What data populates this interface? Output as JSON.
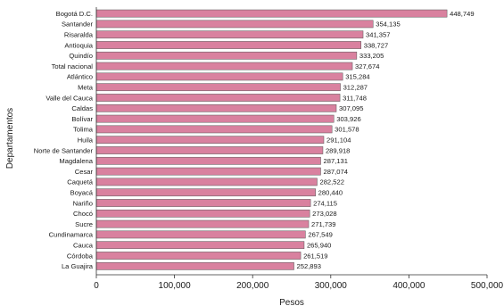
{
  "chart_data": {
    "type": "bar",
    "orientation": "horizontal",
    "xlabel": "Pesos",
    "ylabel": "Departamentos",
    "xlim": [
      0,
      500000
    ],
    "xticks": [
      0,
      100000,
      200000,
      300000,
      400000,
      500000
    ],
    "xtick_labels": [
      "0",
      "100,000",
      "200,000",
      "300,000",
      "400,000",
      "500,000"
    ],
    "grid": false,
    "bar_color": "#d9819f",
    "bar_edge_color": "#555555",
    "categories": [
      "Bogotá D.C.",
      "Santander",
      "Risaralda",
      "Antioquia",
      "Quindío",
      "Total nacional",
      "Atlántico",
      "Meta",
      "Valle del Cauca",
      "Caldas",
      "Bolívar",
      "Tolima",
      "Huila",
      "Norte de Santander",
      "Magdalena",
      "Cesar",
      "Caquetá",
      "Boyacá",
      "Nariño",
      "Chocó",
      "Sucre",
      "Cundinamarca",
      "Cauca",
      "Córdoba",
      "La Guajira"
    ],
    "values": [
      448749,
      354135,
      341357,
      338727,
      333205,
      327674,
      315284,
      312287,
      311748,
      307095,
      303926,
      301578,
      291104,
      289918,
      287131,
      287074,
      282522,
      280440,
      274115,
      273028,
      271739,
      267549,
      265940,
      261519,
      252893
    ],
    "value_labels": [
      "448,749",
      "354,135",
      "341,357",
      "338,727",
      "333,205",
      "327,674",
      "315,284",
      "312,287",
      "311,748",
      "307,095",
      "303,926",
      "301,578",
      "291,104",
      "289,918",
      "287,131",
      "287,074",
      "282,522",
      "280,440",
      "274,115",
      "273,028",
      "271,739",
      "267,549",
      "265,940",
      "261,519",
      "252,893"
    ]
  }
}
